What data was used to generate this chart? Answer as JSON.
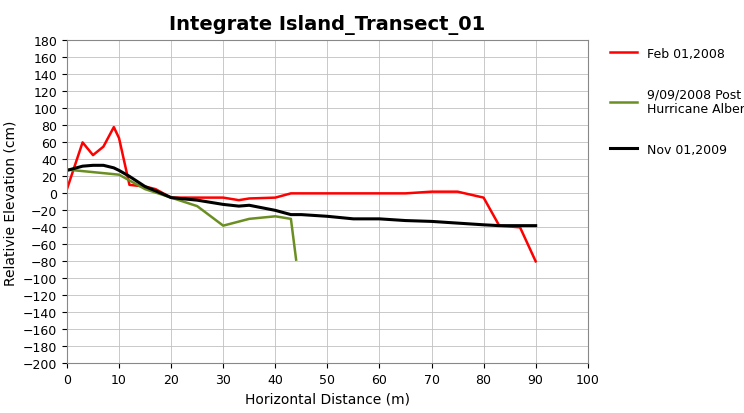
{
  "title": "Integrate Island_Transect_01",
  "xlabel": "Horizontal Distance (m)",
  "ylabel": "Relativie Elevation (cm)",
  "xlim": [
    0,
    100
  ],
  "ylim": [
    -200,
    180
  ],
  "yticks": [
    -200,
    -180,
    -160,
    -140,
    -120,
    -100,
    -80,
    -60,
    -40,
    -20,
    0,
    20,
    40,
    60,
    80,
    100,
    120,
    140,
    160,
    180
  ],
  "xticks": [
    0,
    10,
    20,
    30,
    40,
    50,
    60,
    70,
    80,
    90,
    100
  ],
  "series": [
    {
      "label": "Feb 01,2008",
      "color": "#ff0000",
      "linewidth": 1.8,
      "x": [
        0,
        3,
        5,
        7,
        9,
        10,
        12,
        15,
        17,
        20,
        25,
        30,
        33,
        35,
        40,
        43,
        45,
        50,
        55,
        60,
        65,
        70,
        75,
        80,
        83,
        87,
        90
      ],
      "y": [
        5,
        60,
        45,
        55,
        78,
        65,
        10,
        8,
        5,
        -5,
        -5,
        -5,
        -8,
        -6,
        -5,
        0,
        0,
        0,
        0,
        0,
        0,
        2,
        2,
        -5,
        -38,
        -40,
        -80
      ]
    },
    {
      "label": "9/09/2008 Post\nHurricane Alberto",
      "color": "#6b8e23",
      "linewidth": 1.8,
      "x": [
        0,
        5,
        10,
        15,
        20,
        25,
        30,
        35,
        40,
        43,
        44
      ],
      "y": [
        28,
        25,
        22,
        5,
        -5,
        -15,
        -38,
        -30,
        -27,
        -30,
        -78
      ]
    },
    {
      "label": "Nov 01,2009",
      "color": "#000000",
      "linewidth": 2.2,
      "x": [
        0,
        3,
        5,
        7,
        9,
        10,
        12,
        15,
        17,
        20,
        25,
        30,
        33,
        35,
        40,
        43,
        45,
        50,
        55,
        60,
        65,
        70,
        75,
        80,
        83,
        87,
        90
      ],
      "y": [
        27,
        32,
        33,
        33,
        30,
        27,
        20,
        8,
        3,
        -5,
        -8,
        -13,
        -15,
        -14,
        -20,
        -25,
        -25,
        -27,
        -30,
        -30,
        -32,
        -33,
        -35,
        -37,
        -38,
        -38,
        -38
      ]
    }
  ],
  "background_color": "#ffffff",
  "plot_bg_color": "#ffffff",
  "grid_color": "#c0c0c0",
  "title_fontsize": 14,
  "label_fontsize": 10,
  "tick_fontsize": 9,
  "legend_fontsize": 9
}
